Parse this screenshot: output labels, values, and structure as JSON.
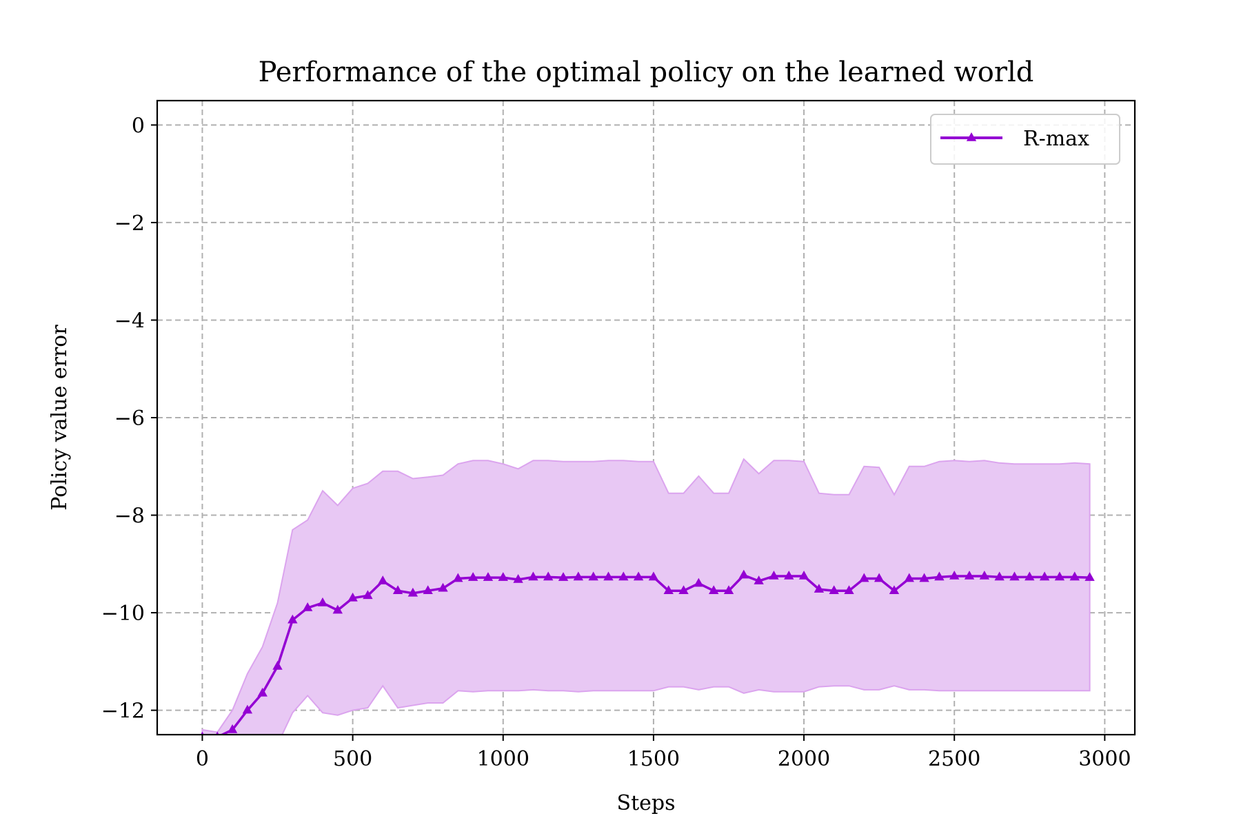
{
  "chart_data": {
    "type": "line",
    "title": "Performance of the optimal policy on the learned world",
    "xlabel": "Steps",
    "ylabel": "Policy value error",
    "xlim": [
      -150,
      3100
    ],
    "ylim": [
      -12.5,
      0.5
    ],
    "xticks": [
      0,
      500,
      1000,
      1500,
      2000,
      2500,
      3000
    ],
    "xtick_labels": [
      "0",
      "500",
      "1000",
      "1500",
      "2000",
      "2500",
      "3000"
    ],
    "yticks": [
      0,
      -2,
      -4,
      -6,
      -8,
      -10,
      -12
    ],
    "ytick_labels": [
      "0",
      "−2",
      "−4",
      "−6",
      "−8",
      "−10",
      "−12"
    ],
    "grid": true,
    "legend_position": "top-right",
    "colors": {
      "line": "#9400d3",
      "band": "#e8c8f4",
      "band_edge": "#dba4ee",
      "grid": "#b0b0b0"
    },
    "series": [
      {
        "name": "R-max",
        "marker": "triangle",
        "x": [
          0,
          50,
          100,
          150,
          200,
          250,
          300,
          350,
          400,
          450,
          500,
          550,
          600,
          650,
          700,
          750,
          800,
          850,
          900,
          950,
          1000,
          1050,
          1100,
          1150,
          1200,
          1250,
          1300,
          1350,
          1400,
          1450,
          1500,
          1550,
          1600,
          1650,
          1700,
          1750,
          1800,
          1850,
          1900,
          1950,
          2000,
          2050,
          2100,
          2150,
          2200,
          2250,
          2300,
          2350,
          2400,
          2450,
          2500,
          2550,
          2600,
          2650,
          2700,
          2750,
          2800,
          2850,
          2900,
          2950
        ],
        "y": [
          -12.55,
          -12.55,
          -12.4,
          -12.0,
          -11.65,
          -11.1,
          -10.15,
          -9.9,
          -9.8,
          -9.95,
          -9.7,
          -9.65,
          -9.35,
          -9.55,
          -9.6,
          -9.55,
          -9.5,
          -9.3,
          -9.28,
          -9.28,
          -9.28,
          -9.32,
          -9.27,
          -9.27,
          -9.28,
          -9.27,
          -9.27,
          -9.27,
          -9.27,
          -9.27,
          -9.27,
          -9.55,
          -9.55,
          -9.4,
          -9.55,
          -9.55,
          -9.23,
          -9.35,
          -9.25,
          -9.25,
          -9.25,
          -9.52,
          -9.55,
          -9.55,
          -9.3,
          -9.3,
          -9.55,
          -9.3,
          -9.3,
          -9.27,
          -9.25,
          -9.25,
          -9.25,
          -9.27,
          -9.27,
          -9.27,
          -9.27,
          -9.27,
          -9.27,
          -9.28
        ],
        "upper": [
          -12.4,
          -12.45,
          -12.0,
          -11.25,
          -10.7,
          -9.8,
          -8.3,
          -8.1,
          -7.5,
          -7.8,
          -7.45,
          -7.35,
          -7.1,
          -7.1,
          -7.25,
          -7.22,
          -7.18,
          -6.95,
          -6.88,
          -6.88,
          -6.95,
          -7.05,
          -6.88,
          -6.88,
          -6.9,
          -6.9,
          -6.9,
          -6.88,
          -6.88,
          -6.9,
          -6.9,
          -7.55,
          -7.55,
          -7.2,
          -7.55,
          -7.55,
          -6.85,
          -7.15,
          -6.88,
          -6.88,
          -6.9,
          -7.55,
          -7.58,
          -7.58,
          -7.0,
          -7.02,
          -7.58,
          -7.0,
          -7.0,
          -6.9,
          -6.88,
          -6.9,
          -6.88,
          -6.93,
          -6.95,
          -6.95,
          -6.95,
          -6.95,
          -6.93,
          -6.95
        ],
        "lower": [
          -12.7,
          -12.7,
          -12.7,
          -12.7,
          -12.7,
          -12.7,
          -12.05,
          -11.7,
          -12.05,
          -12.1,
          -12.0,
          -11.95,
          -11.5,
          -11.95,
          -11.9,
          -11.85,
          -11.85,
          -11.6,
          -11.62,
          -11.6,
          -11.6,
          -11.6,
          -11.58,
          -11.6,
          -11.6,
          -11.62,
          -11.6,
          -11.6,
          -11.6,
          -11.6,
          -11.6,
          -11.52,
          -11.52,
          -11.58,
          -11.52,
          -11.52,
          -11.65,
          -11.58,
          -11.62,
          -11.62,
          -11.62,
          -11.52,
          -11.5,
          -11.5,
          -11.58,
          -11.58,
          -11.5,
          -11.58,
          -11.58,
          -11.6,
          -11.6,
          -11.6,
          -11.6,
          -11.6,
          -11.6,
          -11.6,
          -11.6,
          -11.6,
          -11.6,
          -11.6
        ]
      }
    ]
  }
}
